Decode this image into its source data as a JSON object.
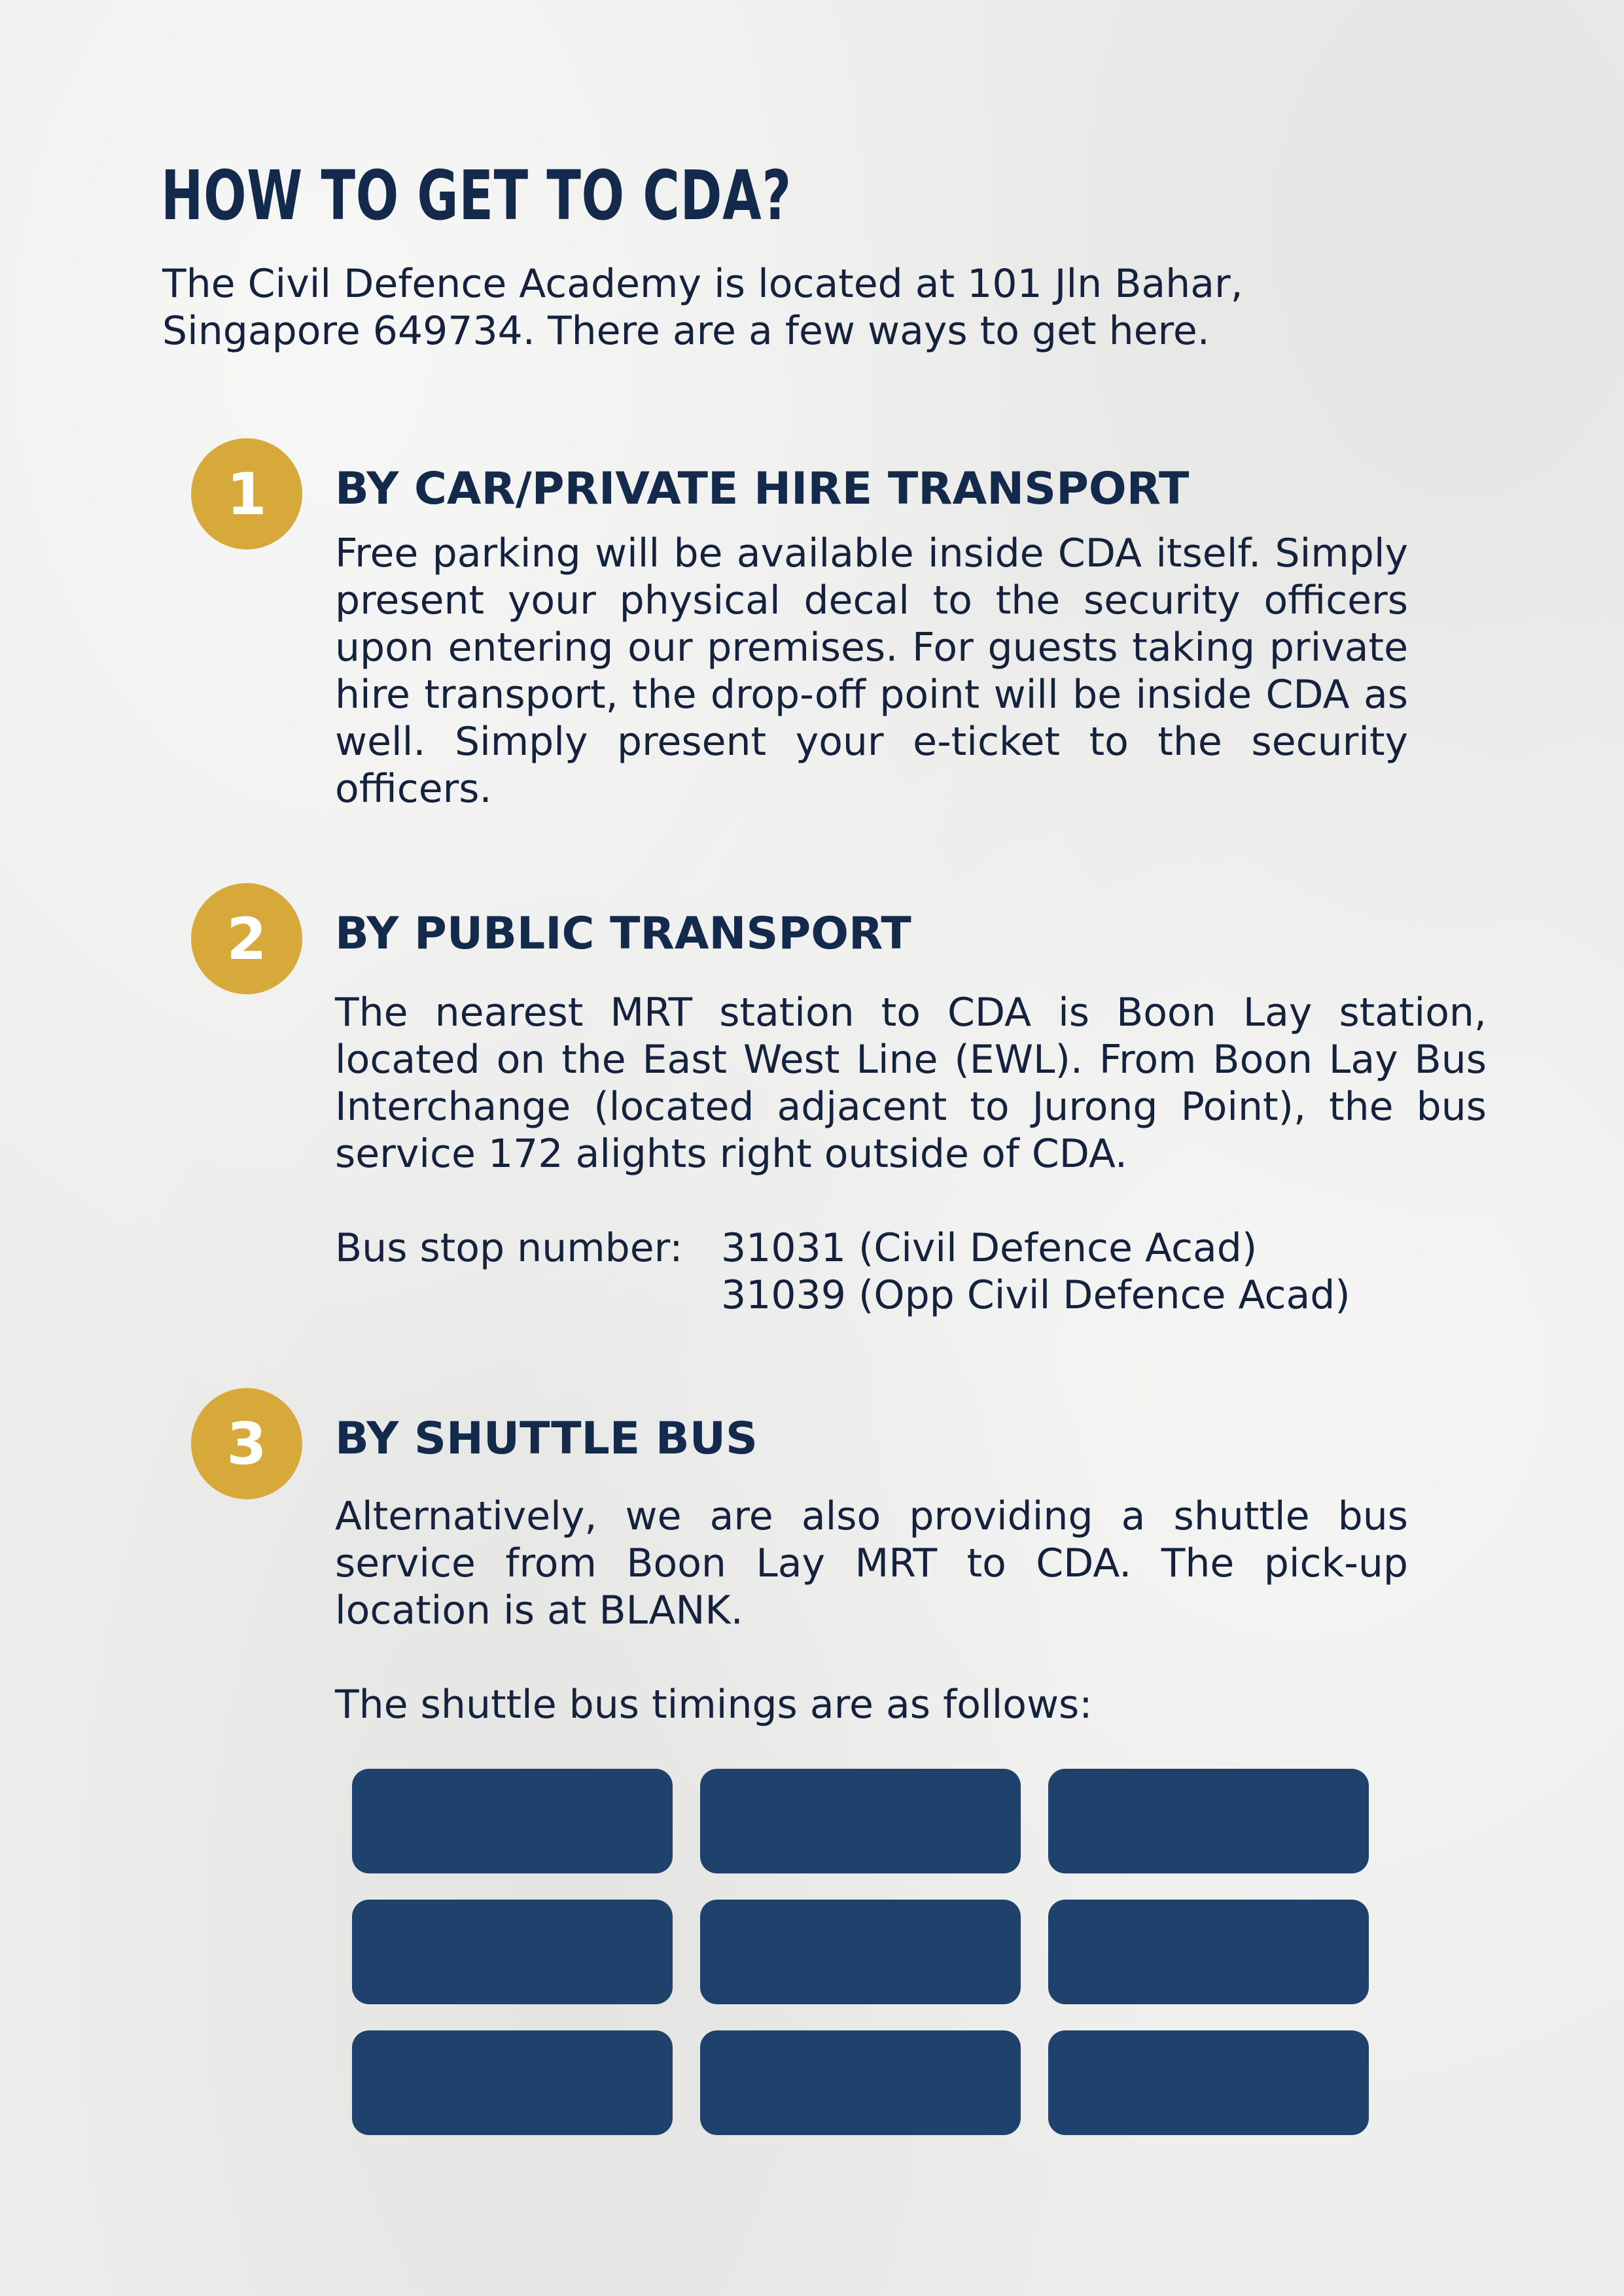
{
  "title": "HOW TO GET TO CDA?",
  "intro_line1": "The Civil Defence Academy is located at 101 Jln Bahar,",
  "intro_line2": "Singapore 649734. There are a few ways to get here.",
  "sections": [
    {
      "number": "1",
      "heading": "BY CAR/PRIVATE HIRE TRANSPORT",
      "text": "Free parking will be available inside CDA itself. Simply present your physical decal to the security officers upon entering our premises. For guests taking private hire transport, the drop-off point will be inside CDA as well. Simply present your e-ticket to the security officers."
    },
    {
      "number": "2",
      "heading": "BY PUBLIC TRANSPORT",
      "text": "The nearest MRT station to CDA is Boon Lay station, located on the East West Line (EWL). From Boon Lay Bus Interchange (located adjacent to Jurong Point), the bus service 172 alights right outside of CDA.",
      "bus_stop_label": "Bus stop number:",
      "bus_stop_1": "31031 (Civil Defence Acad)",
      "bus_stop_2": "31039 (Opp Civil Defence Acad)"
    },
    {
      "number": "3",
      "heading": "BY SHUTTLE BUS",
      "text": "Alternatively, we are also providing a shuttle bus service from Boon Lay MRT to CDA. The pick-up location is at BLANK.",
      "timings_intro": "The shuttle bus timings are as follows:"
    }
  ],
  "timing_slots": [
    "",
    "",
    "",
    "",
    "",
    "",
    "",
    "",
    ""
  ],
  "colors": {
    "navy_text": "#132a4c",
    "gold_badge": "#d6a93a",
    "timing_block": "#1e426c",
    "background": "#ededec"
  }
}
